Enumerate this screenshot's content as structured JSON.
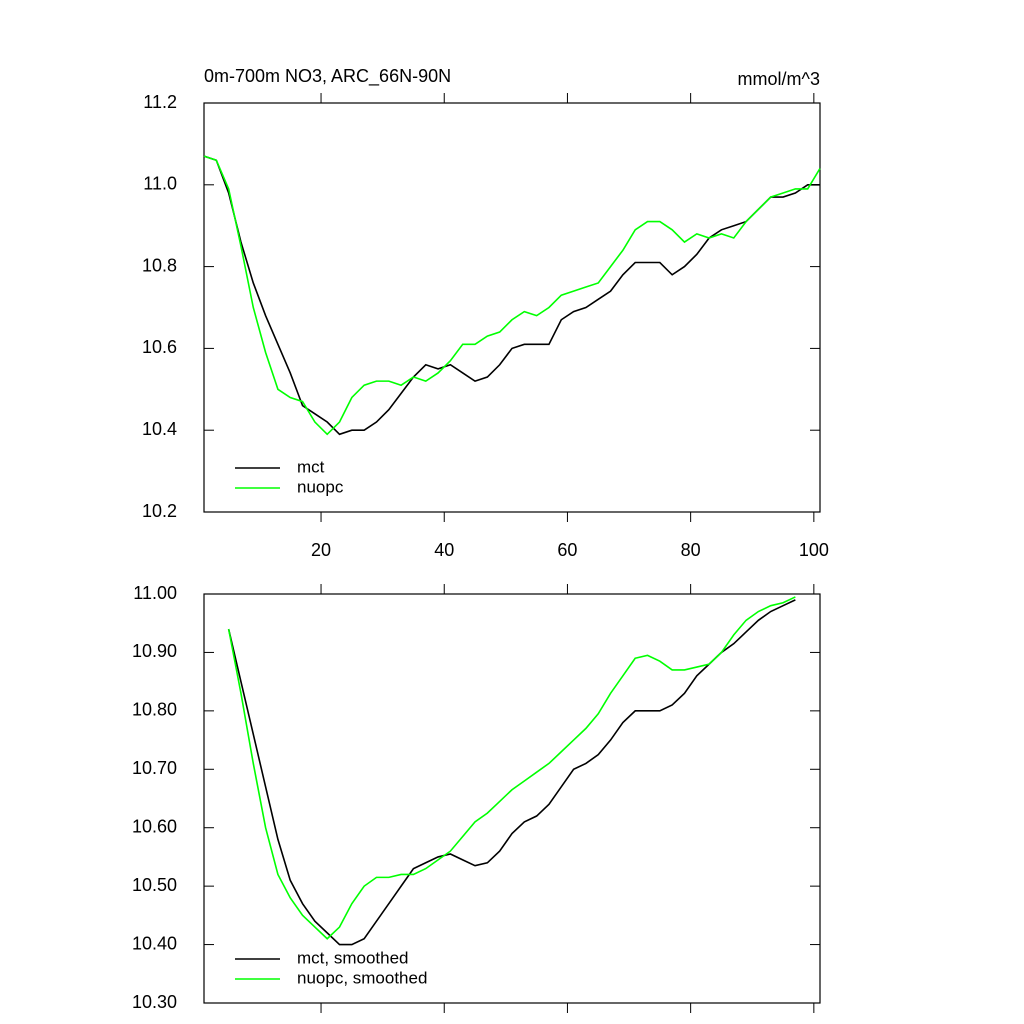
{
  "chart_data": [
    {
      "type": "line",
      "title": "0m-700m NO3, ARC_66N-90N",
      "right_title": "mmol/m^3",
      "x": [
        1,
        3,
        5,
        7,
        9,
        11,
        13,
        15,
        17,
        19,
        21,
        23,
        25,
        27,
        29,
        31,
        33,
        35,
        37,
        39,
        41,
        43,
        45,
        47,
        49,
        51,
        53,
        55,
        57,
        59,
        61,
        63,
        65,
        67,
        69,
        71,
        73,
        75,
        77,
        79,
        81,
        83,
        85,
        87,
        89,
        91,
        93,
        95,
        97,
        99,
        101
      ],
      "series": [
        {
          "name": "mct",
          "color": "#000000",
          "values": [
            11.07,
            11.06,
            10.98,
            10.86,
            10.76,
            10.68,
            10.61,
            10.54,
            10.46,
            10.44,
            10.42,
            10.39,
            10.4,
            10.4,
            10.42,
            10.45,
            10.49,
            10.53,
            10.56,
            10.55,
            10.56,
            10.54,
            10.52,
            10.53,
            10.56,
            10.6,
            10.61,
            10.61,
            10.61,
            10.67,
            10.69,
            10.7,
            10.72,
            10.74,
            10.78,
            10.81,
            10.81,
            10.81,
            10.78,
            10.8,
            10.83,
            10.87,
            10.89,
            10.9,
            10.91,
            10.94,
            10.97,
            10.97,
            10.98,
            11.0,
            11.0
          ]
        },
        {
          "name": "nuopc",
          "color": "#00ff00",
          "values": [
            11.07,
            11.06,
            10.99,
            10.85,
            10.7,
            10.59,
            10.5,
            10.48,
            10.47,
            10.42,
            10.39,
            10.42,
            10.48,
            10.51,
            10.52,
            10.52,
            10.51,
            10.53,
            10.52,
            10.54,
            10.57,
            10.61,
            10.61,
            10.63,
            10.64,
            10.67,
            10.69,
            10.68,
            10.7,
            10.73,
            10.74,
            10.75,
            10.76,
            10.8,
            10.84,
            10.89,
            10.91,
            10.91,
            10.89,
            10.86,
            10.88,
            10.87,
            10.88,
            10.87,
            10.91,
            10.94,
            10.97,
            10.98,
            10.99,
            10.99,
            11.04
          ]
        }
      ],
      "xlim": [
        1,
        101
      ],
      "xticks": [
        20,
        40,
        60,
        80,
        100
      ],
      "show_xtick_labels": true,
      "ylim": [
        10.2,
        11.2
      ],
      "yticks": [
        10.2,
        10.4,
        10.6,
        10.8,
        {
          "value": 11.0,
          "label": "11.0"
        },
        11.2
      ]
    },
    {
      "type": "line",
      "x": [
        5,
        7,
        9,
        11,
        13,
        15,
        17,
        19,
        21,
        23,
        25,
        27,
        29,
        31,
        33,
        35,
        37,
        39,
        41,
        43,
        45,
        47,
        49,
        51,
        53,
        55,
        57,
        59,
        61,
        63,
        65,
        67,
        69,
        71,
        73,
        75,
        77,
        79,
        81,
        83,
        85,
        87,
        89,
        91,
        93,
        95,
        97
      ],
      "series": [
        {
          "name": "mct, smoothed",
          "color": "#000000",
          "values": [
            10.94,
            10.85,
            10.76,
            10.67,
            10.58,
            10.51,
            10.47,
            10.44,
            10.42,
            10.4,
            10.4,
            10.41,
            10.44,
            10.47,
            10.5,
            10.53,
            10.54,
            10.55,
            10.555,
            10.545,
            10.535,
            10.54,
            10.56,
            10.59,
            10.61,
            10.62,
            10.64,
            10.67,
            10.7,
            10.71,
            10.725,
            10.75,
            10.78,
            10.8,
            10.8,
            10.8,
            10.81,
            10.83,
            10.86,
            10.88,
            10.9,
            10.915,
            10.935,
            10.955,
            10.97,
            10.98,
            10.99
          ]
        },
        {
          "name": "nuopc, smoothed",
          "color": "#00ff00",
          "values": [
            10.94,
            10.83,
            10.71,
            10.6,
            10.52,
            10.48,
            10.45,
            10.43,
            10.41,
            10.43,
            10.47,
            10.5,
            10.515,
            10.515,
            10.52,
            10.52,
            10.53,
            10.545,
            10.56,
            10.585,
            10.61,
            10.625,
            10.645,
            10.665,
            10.68,
            10.695,
            10.71,
            10.73,
            10.75,
            10.77,
            10.795,
            10.83,
            10.86,
            10.89,
            10.895,
            10.885,
            10.87,
            10.87,
            10.875,
            10.88,
            10.9,
            10.93,
            10.955,
            10.97,
            10.98,
            10.985,
            10.995
          ]
        }
      ],
      "xlim": [
        1,
        101
      ],
      "xticks": [
        20,
        40,
        60,
        80,
        100
      ],
      "show_xtick_labels": false,
      "ylim": [
        10.3,
        11.0
      ],
      "yticks": [
        {
          "value": 10.3,
          "label": "10.30"
        },
        {
          "value": 10.4,
          "label": "10.40"
        },
        {
          "value": 10.5,
          "label": "10.50"
        },
        {
          "value": 10.6,
          "label": "10.60"
        },
        {
          "value": 10.7,
          "label": "10.70"
        },
        {
          "value": 10.8,
          "label": "10.80"
        },
        {
          "value": 10.9,
          "label": "10.90"
        },
        {
          "value": 11.0,
          "label": "11.00"
        }
      ]
    }
  ]
}
